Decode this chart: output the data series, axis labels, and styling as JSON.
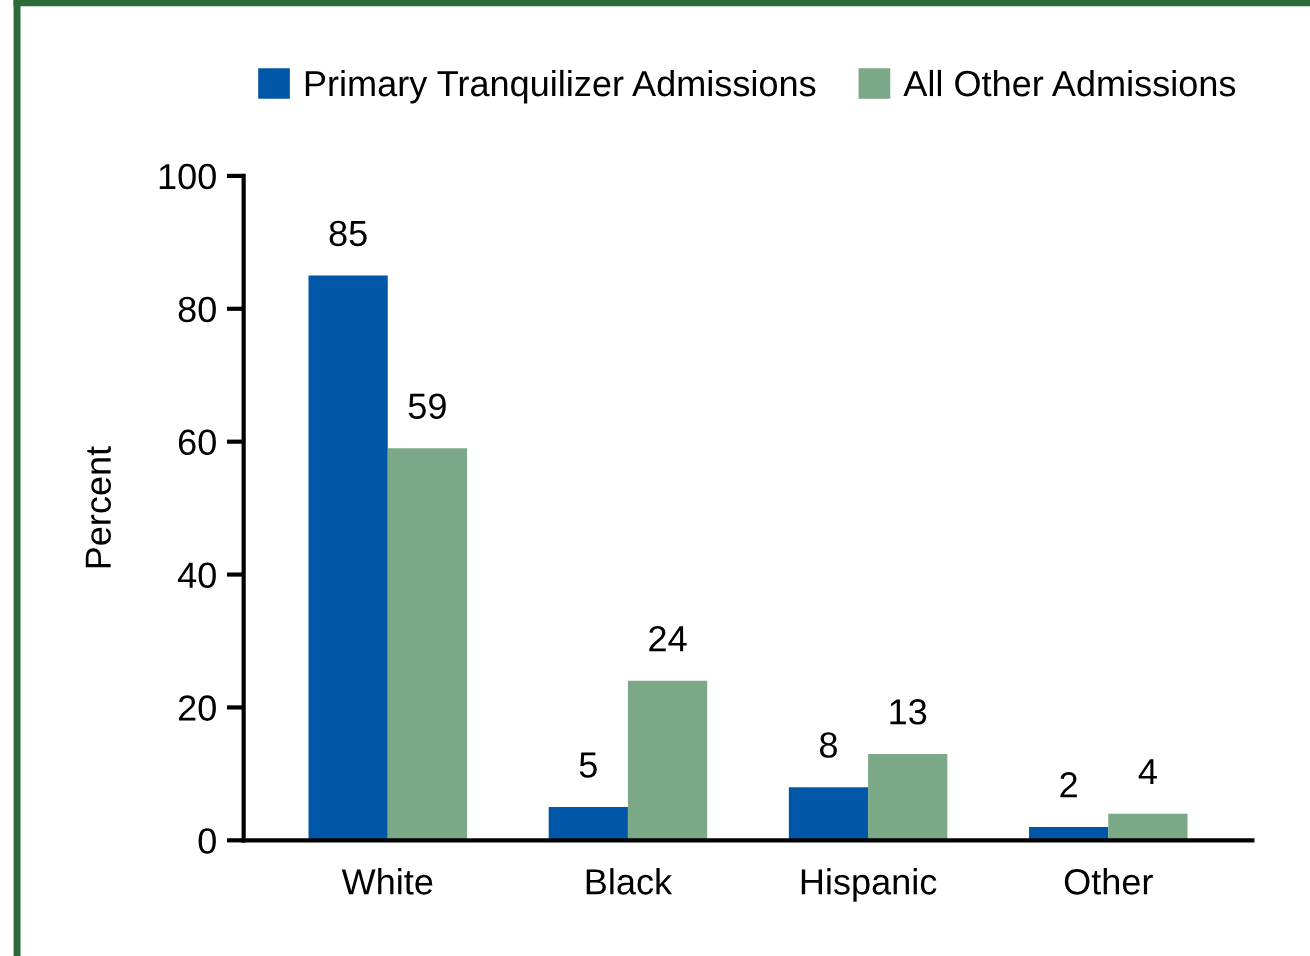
{
  "chart_data": {
    "type": "bar",
    "ylabel": "Percent",
    "categories": [
      "White",
      "Black",
      "Hispanic",
      "Other"
    ],
    "series": [
      {
        "name": "Primary Tranquilizer Admissions",
        "color": "#0057a8",
        "values": [
          85,
          5,
          8,
          2
        ]
      },
      {
        "name": "All Other Admissions",
        "color": "#7ba887",
        "values": [
          59,
          24,
          13,
          4
        ]
      }
    ],
    "ylim": [
      0,
      100
    ],
    "yticks": [
      0,
      20,
      40,
      60,
      80,
      100
    ],
    "grid": false,
    "legend": "top",
    "data_labels": true
  }
}
